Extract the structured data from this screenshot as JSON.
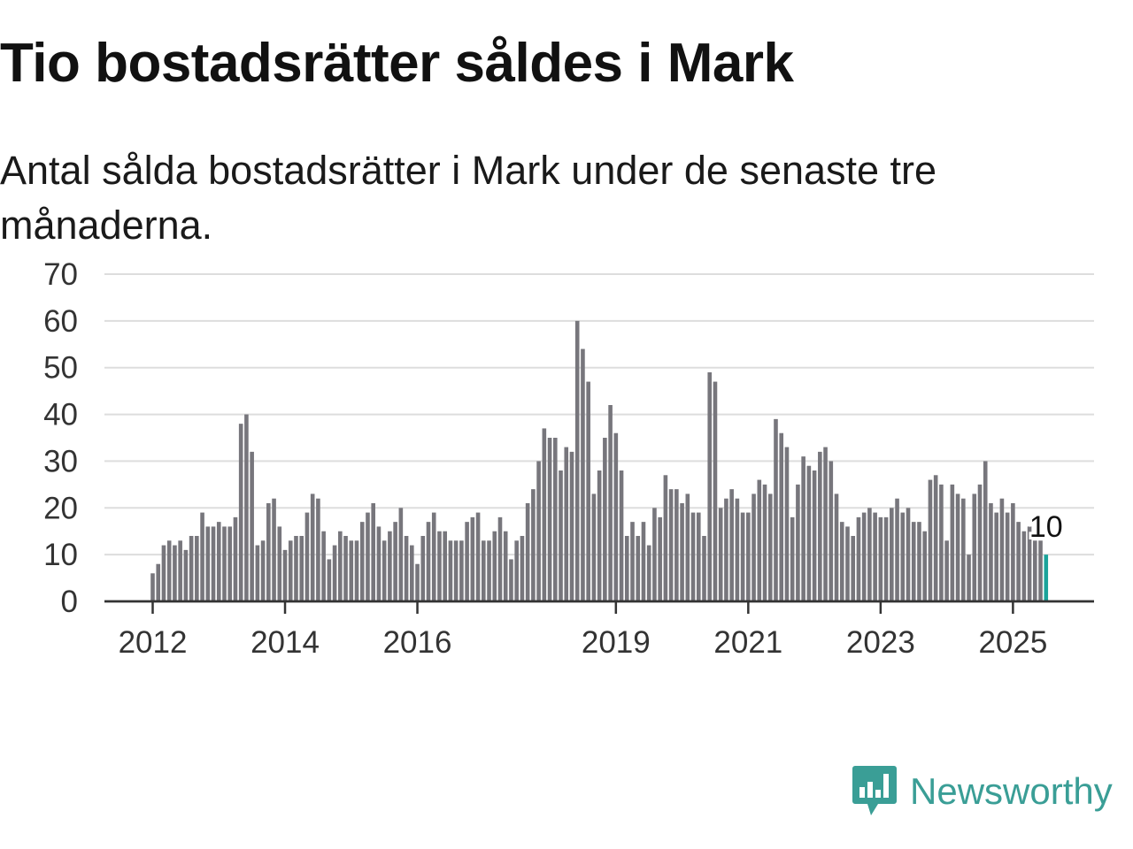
{
  "header": {
    "title": "Tio bostadsrätter såldes i Mark",
    "subtitle": "Antal sålda bostadsrätter i Mark under de senaste tre månaderna."
  },
  "brand": {
    "name": "Newsworthy",
    "icon": "newsworthy-logo-icon"
  },
  "colors": {
    "bar": "#77767c",
    "highlight": "#1aa39a",
    "grid": "#dddddd",
    "axis": "#333333",
    "brand": "#3a9e96"
  },
  "chart_data": {
    "type": "bar",
    "title": "",
    "xlabel": "",
    "ylabel": "",
    "ylim": [
      0,
      70
    ],
    "y_ticks": [
      "0",
      "10",
      "20",
      "30",
      "40",
      "50",
      "60",
      "70"
    ],
    "x_ticks": [
      "2012",
      "2014",
      "2016",
      "2019",
      "2021",
      "2023",
      "2025"
    ],
    "grid": "horizontal",
    "start": "2012-01",
    "end": "2025-07",
    "values": [
      6,
      8,
      12,
      13,
      12,
      13,
      11,
      14,
      14,
      19,
      16,
      16,
      17,
      16,
      16,
      18,
      38,
      40,
      32,
      12,
      13,
      21,
      22,
      16,
      11,
      13,
      14,
      14,
      19,
      23,
      22,
      15,
      9,
      12,
      15,
      14,
      13,
      13,
      17,
      19,
      21,
      16,
      13,
      15,
      17,
      20,
      14,
      12,
      8,
      14,
      17,
      19,
      15,
      15,
      13,
      13,
      13,
      17,
      18,
      19,
      13,
      13,
      15,
      18,
      15,
      9,
      13,
      14,
      21,
      24,
      30,
      37,
      35,
      35,
      28,
      33,
      32,
      60,
      54,
      47,
      23,
      28,
      35,
      42,
      36,
      28,
      14,
      17,
      14,
      17,
      12,
      20,
      18,
      27,
      24,
      24,
      21,
      23,
      19,
      19,
      14,
      49,
      47,
      20,
      22,
      24,
      22,
      19,
      19,
      23,
      26,
      25,
      23,
      39,
      36,
      33,
      18,
      25,
      31,
      29,
      28,
      32,
      33,
      30,
      23,
      17,
      16,
      14,
      18,
      19,
      20,
      19,
      18,
      18,
      20,
      22,
      19,
      20,
      17,
      17,
      15,
      26,
      27,
      25,
      13,
      25,
      23,
      22,
      10,
      23,
      25,
      30,
      21,
      19,
      22,
      19,
      21,
      17,
      15,
      16,
      13,
      13,
      10
    ],
    "highlight": {
      "label": "10",
      "value": 10
    }
  }
}
